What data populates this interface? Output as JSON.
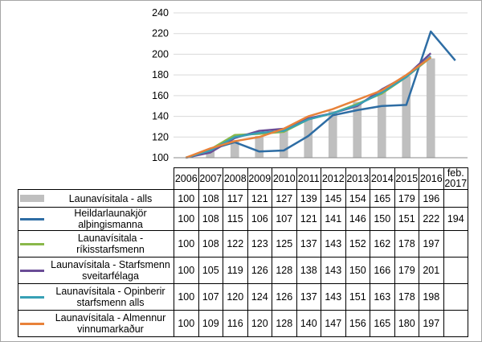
{
  "chart_data": {
    "type": "bar+line",
    "title": "",
    "categories": [
      "2006",
      "2007",
      "2008",
      "2009",
      "2010",
      "2011",
      "2012",
      "2013",
      "2014",
      "2015",
      "2016",
      "feb. 2017"
    ],
    "ylim": [
      100,
      240
    ],
    "yticks": [
      100,
      120,
      140,
      160,
      180,
      200,
      220,
      240
    ],
    "grid": true,
    "legend": "data-table",
    "series": [
      {
        "name": "Launavísitala - alls",
        "kind": "bar",
        "color": "#bfbfbf",
        "values": [
          100,
          108,
          117,
          121,
          127,
          139,
          145,
          154,
          165,
          179,
          196,
          null
        ]
      },
      {
        "name": "Heildarlaunakjör alþingismanna",
        "kind": "line",
        "color": "#2e6da4",
        "values": [
          100,
          108,
          115,
          106,
          107,
          121,
          141,
          146,
          150,
          151,
          222,
          194
        ]
      },
      {
        "name": "Launavísitala - ríkisstarfsmenn",
        "kind": "line",
        "color": "#8ab84a",
        "values": [
          100,
          108,
          122,
          123,
          125,
          137,
          143,
          152,
          162,
          178,
          197,
          null
        ]
      },
      {
        "name": "Launavísitala - Starfsmenn sveitarfélaga",
        "kind": "line",
        "color": "#6a4c96",
        "values": [
          100,
          105,
          119,
          126,
          128,
          138,
          143,
          150,
          166,
          179,
          201,
          null
        ]
      },
      {
        "name": "Launavísitala - Opinberir starfsmenn alls",
        "kind": "line",
        "color": "#37a0b5",
        "values": [
          100,
          107,
          120,
          124,
          126,
          137,
          143,
          151,
          163,
          178,
          198,
          null
        ]
      },
      {
        "name": "Launavísitala - Almennur vinnumarkaður",
        "kind": "line",
        "color": "#e8823a",
        "values": [
          100,
          109,
          116,
          120,
          128,
          140,
          147,
          156,
          165,
          180,
          197,
          null
        ]
      }
    ]
  }
}
